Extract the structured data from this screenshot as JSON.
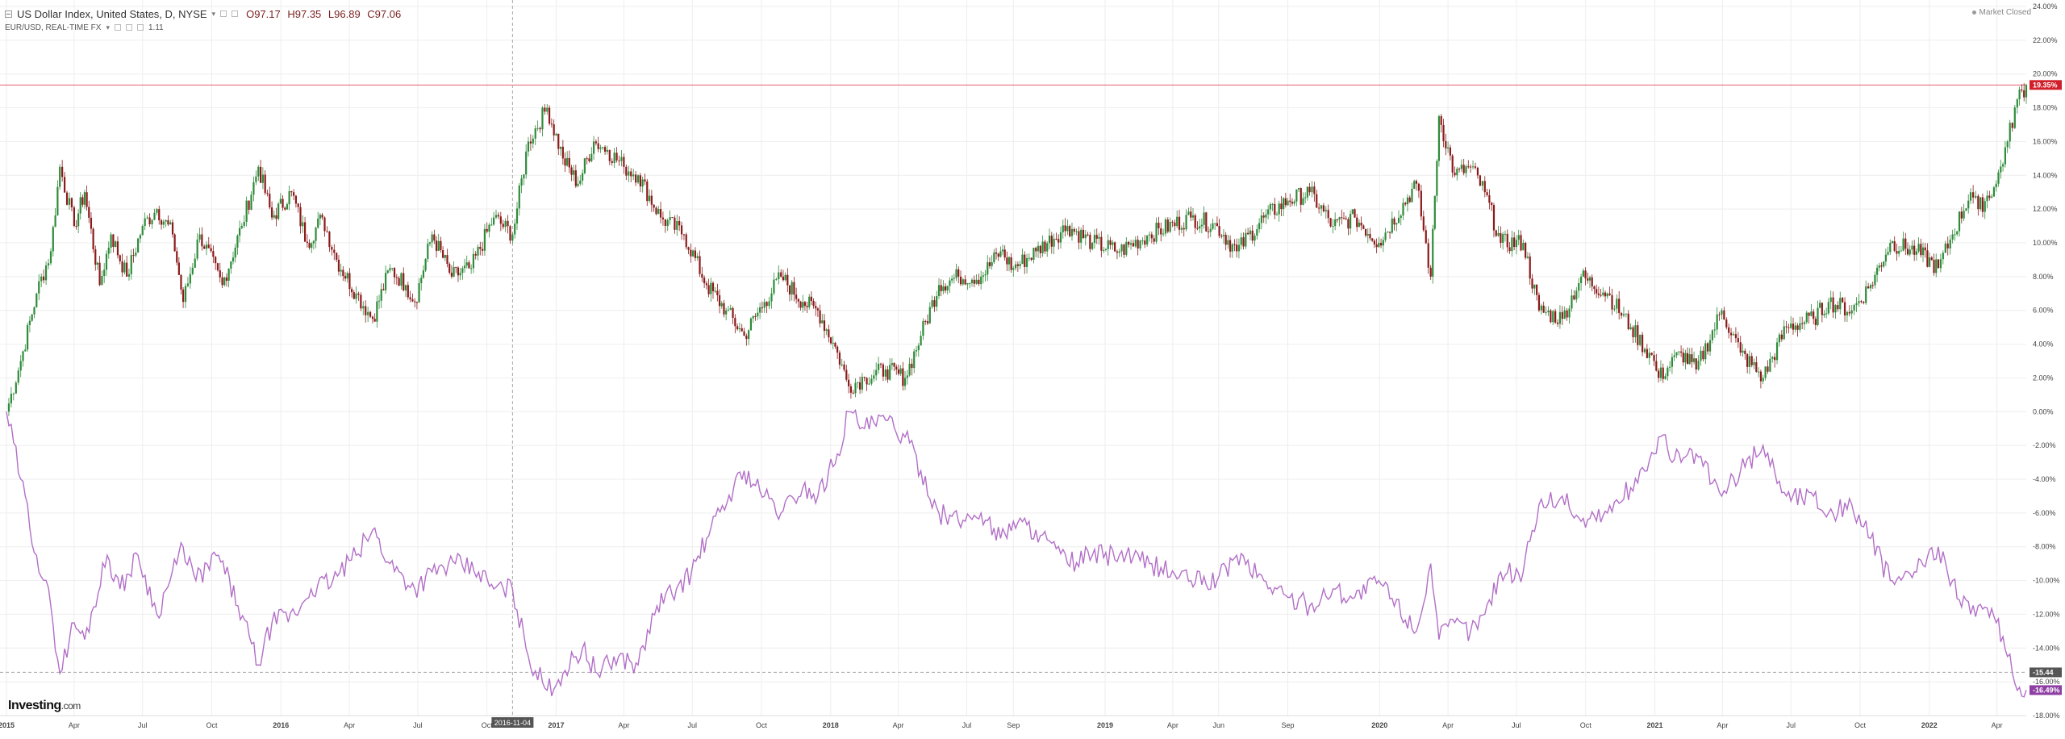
{
  "legend": {
    "main_series": "US Dollar Index, United States, D, NYSE",
    "o": "O97.17",
    "h": "H97.35",
    "l": "L96.89",
    "c": "C97.06",
    "compare_series": "EUR/USD, REAL-TIME FX",
    "compare_value": "1.11"
  },
  "market_status": "Market Closed",
  "crosshair_date": "2016-11-04",
  "brand": {
    "name": "Investing",
    "suffix": ".com"
  },
  "colors": {
    "up": "#2e8b3a",
    "down": "#8b1a1a",
    "compare_line": "#b26fc7",
    "hline": "#e06070",
    "grid": "#eeeeee",
    "axis_text": "#444444",
    "badge_red": "#d11f2a",
    "badge_dark": "#555555",
    "badge_purple": "#8e3fa3"
  },
  "chart_data": {
    "type": "line",
    "title": "",
    "xlabel": "",
    "ylabel": "",
    "ylim": [
      -18,
      24
    ],
    "y_ticks": [
      "24.00%",
      "22.00%",
      "20.00%",
      "18.00%",
      "16.00%",
      "14.00%",
      "12.00%",
      "10.00%",
      "8.00%",
      "6.00%",
      "4.00%",
      "2.00%",
      "0.00%",
      "-2.00%",
      "-4.00%",
      "-6.00%",
      "-8.00%",
      "-10.00%",
      "-12.00%",
      "-14.00%",
      "-16.00%",
      "-18.00%"
    ],
    "x_range": [
      "2015-01-01",
      "2022-05-10"
    ],
    "x_ticks": [
      {
        "date": "2015-01-01",
        "label": "2015"
      },
      {
        "date": "2015-04-01",
        "label": "Apr"
      },
      {
        "date": "2015-07-01",
        "label": "Jul"
      },
      {
        "date": "2015-10-01",
        "label": "Oct"
      },
      {
        "date": "2016-01-01",
        "label": "2016"
      },
      {
        "date": "2016-04-01",
        "label": "Apr"
      },
      {
        "date": "2016-07-01",
        "label": "Jul"
      },
      {
        "date": "2016-10-01",
        "label": "Oct"
      },
      {
        "date": "2017-01-01",
        "label": "2017"
      },
      {
        "date": "2017-04-01",
        "label": "Apr"
      },
      {
        "date": "2017-07-01",
        "label": "Jul"
      },
      {
        "date": "2017-10-01",
        "label": "Oct"
      },
      {
        "date": "2018-01-01",
        "label": "2018"
      },
      {
        "date": "2018-04-01",
        "label": "Apr"
      },
      {
        "date": "2018-07-01",
        "label": "Jul"
      },
      {
        "date": "2018-09-01",
        "label": "Sep"
      },
      {
        "date": "2019-01-01",
        "label": "2019"
      },
      {
        "date": "2019-04-01",
        "label": "Apr"
      },
      {
        "date": "2019-06-01",
        "label": "Jun"
      },
      {
        "date": "2019-09-01",
        "label": "Sep"
      },
      {
        "date": "2020-01-01",
        "label": "2020"
      },
      {
        "date": "2020-04-01",
        "label": "Apr"
      },
      {
        "date": "2020-07-01",
        "label": "Jul"
      },
      {
        "date": "2020-10-01",
        "label": "Oct"
      },
      {
        "date": "2021-01-01",
        "label": "2021"
      },
      {
        "date": "2021-04-01",
        "label": "Apr"
      },
      {
        "date": "2021-07-01",
        "label": "Jul"
      },
      {
        "date": "2021-10-01",
        "label": "Oct"
      },
      {
        "date": "2022-01-01",
        "label": "2022"
      },
      {
        "date": "2022-04-01",
        "label": "Apr"
      }
    ],
    "crosshair": {
      "x": "2016-11-04",
      "y": -15.44
    },
    "horizontal_line": 19.35,
    "badges": [
      {
        "value": 19.35,
        "label": "19.35%",
        "kind": "red"
      },
      {
        "value": -15.44,
        "label": "-15.44",
        "kind": "dark"
      },
      {
        "value": -16.49,
        "label": "-16.49%",
        "kind": "purple"
      }
    ],
    "series": [
      {
        "name": "US Dollar Index",
        "style": "candlestick",
        "points": [
          [
            "2015-01-01",
            0.0
          ],
          [
            "2015-01-20",
            3.0
          ],
          [
            "2015-02-10",
            7.0
          ],
          [
            "2015-03-01",
            9.5
          ],
          [
            "2015-03-13",
            14.5
          ],
          [
            "2015-04-01",
            11.0
          ],
          [
            "2015-04-15",
            13.0
          ],
          [
            "2015-05-05",
            7.5
          ],
          [
            "2015-05-20",
            10.5
          ],
          [
            "2015-06-10",
            8.0
          ],
          [
            "2015-07-01",
            11.0
          ],
          [
            "2015-07-20",
            12.0
          ],
          [
            "2015-08-10",
            10.5
          ],
          [
            "2015-08-24",
            6.5
          ],
          [
            "2015-09-15",
            10.5
          ],
          [
            "2015-10-15",
            7.5
          ],
          [
            "2015-11-10",
            11.0
          ],
          [
            "2015-12-02",
            14.5
          ],
          [
            "2015-12-20",
            11.5
          ],
          [
            "2016-01-15",
            13.0
          ],
          [
            "2016-02-05",
            10.0
          ],
          [
            "2016-02-25",
            11.5
          ],
          [
            "2016-03-15",
            9.0
          ],
          [
            "2016-04-10",
            7.0
          ],
          [
            "2016-05-02",
            5.5
          ],
          [
            "2016-05-25",
            8.5
          ],
          [
            "2016-06-15",
            7.5
          ],
          [
            "2016-06-27",
            6.5
          ],
          [
            "2016-07-20",
            10.5
          ],
          [
            "2016-08-15",
            8.0
          ],
          [
            "2016-09-10",
            8.5
          ],
          [
            "2016-10-10",
            11.5
          ],
          [
            "2016-11-04",
            10.5
          ],
          [
            "2016-11-25",
            16.0
          ],
          [
            "2016-12-20",
            18.0
          ],
          [
            "2017-01-10",
            15.0
          ],
          [
            "2017-01-30",
            13.5
          ],
          [
            "2017-02-20",
            16.0
          ],
          [
            "2017-03-10",
            15.5
          ],
          [
            "2017-04-01",
            14.5
          ],
          [
            "2017-04-20",
            14.0
          ],
          [
            "2017-05-20",
            11.5
          ],
          [
            "2017-06-20",
            10.5
          ],
          [
            "2017-07-20",
            7.5
          ],
          [
            "2017-08-15",
            6.0
          ],
          [
            "2017-09-08",
            4.5
          ],
          [
            "2017-10-05",
            6.5
          ],
          [
            "2017-10-27",
            8.0
          ],
          [
            "2017-11-25",
            6.5
          ],
          [
            "2017-12-15",
            6.0
          ],
          [
            "2018-01-10",
            3.5
          ],
          [
            "2018-01-25",
            1.5
          ],
          [
            "2018-02-15",
            2.0
          ],
          [
            "2018-03-15",
            2.5
          ],
          [
            "2018-04-10",
            2.0
          ],
          [
            "2018-05-01",
            4.5
          ],
          [
            "2018-05-25",
            7.5
          ],
          [
            "2018-06-20",
            8.0
          ],
          [
            "2018-07-20",
            8.0
          ],
          [
            "2018-08-15",
            9.5
          ],
          [
            "2018-09-01",
            8.5
          ],
          [
            "2018-10-01",
            9.5
          ],
          [
            "2018-11-12",
            11.0
          ],
          [
            "2018-12-15",
            10.0
          ],
          [
            "2019-01-20",
            9.5
          ],
          [
            "2019-03-01",
            10.5
          ],
          [
            "2019-04-25",
            11.5
          ],
          [
            "2019-05-30",
            11.0
          ],
          [
            "2019-06-25",
            9.5
          ],
          [
            "2019-07-31",
            11.5
          ],
          [
            "2019-09-01",
            12.5
          ],
          [
            "2019-09-30",
            13.0
          ],
          [
            "2019-10-31",
            11.0
          ],
          [
            "2019-11-29",
            11.5
          ],
          [
            "2019-12-31",
            10.0
          ],
          [
            "2020-02-19",
            13.5
          ],
          [
            "2020-03-09",
            8.0
          ],
          [
            "2020-03-20",
            17.5
          ],
          [
            "2020-04-10",
            14.0
          ],
          [
            "2020-05-01",
            14.5
          ],
          [
            "2020-05-20",
            13.0
          ],
          [
            "2020-06-10",
            10.0
          ],
          [
            "2020-07-10",
            10.0
          ],
          [
            "2020-07-31",
            6.0
          ],
          [
            "2020-08-31",
            5.5
          ],
          [
            "2020-09-25",
            8.0
          ],
          [
            "2020-10-30",
            7.0
          ],
          [
            "2020-11-30",
            5.0
          ],
          [
            "2020-12-31",
            3.0
          ],
          [
            "2021-01-06",
            2.0
          ],
          [
            "2021-02-05",
            3.5
          ],
          [
            "2021-02-25",
            2.5
          ],
          [
            "2021-03-31",
            6.0
          ],
          [
            "2021-04-25",
            3.5
          ],
          [
            "2021-05-25",
            2.0
          ],
          [
            "2021-06-25",
            5.0
          ],
          [
            "2021-07-31",
            5.5
          ],
          [
            "2021-08-20",
            6.5
          ],
          [
            "2021-09-20",
            6.0
          ],
          [
            "2021-10-15",
            7.5
          ],
          [
            "2021-11-10",
            10.0
          ],
          [
            "2021-12-15",
            9.5
          ],
          [
            "2022-01-13",
            8.5
          ],
          [
            "2022-02-01",
            10.5
          ],
          [
            "2022-02-25",
            13.0
          ],
          [
            "2022-03-07",
            12.0
          ],
          [
            "2022-03-31",
            13.5
          ],
          [
            "2022-04-15",
            16.0
          ],
          [
            "2022-04-28",
            18.5
          ],
          [
            "2022-05-10",
            19.35
          ]
        ]
      },
      {
        "name": "EUR/USD",
        "style": "line",
        "points": [
          [
            "2015-01-01",
            0.0
          ],
          [
            "2015-01-20",
            -4.0
          ],
          [
            "2015-02-10",
            -8.5
          ],
          [
            "2015-03-01",
            -11.5
          ],
          [
            "2015-03-13",
            -15.5
          ],
          [
            "2015-04-01",
            -12.5
          ],
          [
            "2015-04-15",
            -13.5
          ],
          [
            "2015-05-15",
            -8.5
          ],
          [
            "2015-06-01",
            -10.5
          ],
          [
            "2015-06-25",
            -8.5
          ],
          [
            "2015-07-20",
            -12.0
          ],
          [
            "2015-08-24",
            -8.0
          ],
          [
            "2015-09-10",
            -10.0
          ],
          [
            "2015-10-10",
            -8.5
          ],
          [
            "2015-11-05",
            -11.5
          ],
          [
            "2015-12-02",
            -15.0
          ],
          [
            "2015-12-20",
            -12.5
          ],
          [
            "2016-01-20",
            -12.0
          ],
          [
            "2016-02-10",
            -10.5
          ],
          [
            "2016-03-10",
            -10.0
          ],
          [
            "2016-04-10",
            -8.5
          ],
          [
            "2016-05-02",
            -7.0
          ],
          [
            "2016-05-25",
            -9.0
          ],
          [
            "2016-06-27",
            -10.5
          ],
          [
            "2016-07-20",
            -9.5
          ],
          [
            "2016-08-20",
            -9.0
          ],
          [
            "2016-09-20",
            -9.5
          ],
          [
            "2016-10-10",
            -10.5
          ],
          [
            "2016-11-04",
            -10.5
          ],
          [
            "2016-11-25",
            -14.5
          ],
          [
            "2016-12-20",
            -16.5
          ],
          [
            "2017-01-10",
            -15.5
          ],
          [
            "2017-02-05",
            -14.0
          ],
          [
            "2017-02-25",
            -15.5
          ],
          [
            "2017-03-25",
            -14.5
          ],
          [
            "2017-04-20",
            -15.0
          ],
          [
            "2017-05-15",
            -11.5
          ],
          [
            "2017-06-10",
            -10.5
          ],
          [
            "2017-06-30",
            -9.5
          ],
          [
            "2017-07-20",
            -7.5
          ],
          [
            "2017-08-25",
            -4.5
          ],
          [
            "2017-09-08",
            -3.5
          ],
          [
            "2017-10-05",
            -5.0
          ],
          [
            "2017-10-27",
            -6.0
          ],
          [
            "2017-11-25",
            -4.5
          ],
          [
            "2017-12-15",
            -5.0
          ],
          [
            "2018-01-10",
            -2.5
          ],
          [
            "2018-01-25",
            0.0
          ],
          [
            "2018-02-15",
            -1.0
          ],
          [
            "2018-03-15",
            -0.5
          ],
          [
            "2018-04-10",
            -1.5
          ],
          [
            "2018-05-01",
            -3.5
          ],
          [
            "2018-05-25",
            -6.0
          ],
          [
            "2018-06-20",
            -6.5
          ],
          [
            "2018-07-20",
            -6.0
          ],
          [
            "2018-08-15",
            -7.5
          ],
          [
            "2018-09-01",
            -6.5
          ],
          [
            "2018-10-01",
            -7.0
          ],
          [
            "2018-11-12",
            -9.0
          ],
          [
            "2018-12-15",
            -8.5
          ],
          [
            "2019-01-20",
            -8.5
          ],
          [
            "2019-03-01",
            -9.0
          ],
          [
            "2019-04-25",
            -10.0
          ],
          [
            "2019-05-30",
            -10.0
          ],
          [
            "2019-06-25",
            -8.5
          ],
          [
            "2019-07-31",
            -10.0
          ],
          [
            "2019-09-01",
            -11.0
          ],
          [
            "2019-09-30",
            -11.5
          ],
          [
            "2019-10-31",
            -10.5
          ],
          [
            "2019-11-29",
            -11.0
          ],
          [
            "2019-12-31",
            -10.0
          ],
          [
            "2020-02-19",
            -13.0
          ],
          [
            "2020-03-09",
            -9.0
          ],
          [
            "2020-03-20",
            -13.5
          ],
          [
            "2020-04-10",
            -12.5
          ],
          [
            "2020-05-01",
            -13.0
          ],
          [
            "2020-05-20",
            -12.0
          ],
          [
            "2020-06-10",
            -9.5
          ],
          [
            "2020-07-10",
            -9.5
          ],
          [
            "2020-07-31",
            -5.5
          ],
          [
            "2020-08-31",
            -5.0
          ],
          [
            "2020-09-25",
            -6.5
          ],
          [
            "2020-10-30",
            -6.0
          ],
          [
            "2020-11-30",
            -4.5
          ],
          [
            "2020-12-31",
            -2.5
          ],
          [
            "2021-01-06",
            -1.5
          ],
          [
            "2021-02-05",
            -3.0
          ],
          [
            "2021-02-25",
            -2.5
          ],
          [
            "2021-03-31",
            -5.0
          ],
          [
            "2021-04-25",
            -3.5
          ],
          [
            "2021-05-25",
            -2.0
          ],
          [
            "2021-06-25",
            -5.0
          ],
          [
            "2021-07-31",
            -5.0
          ],
          [
            "2021-08-20",
            -6.0
          ],
          [
            "2021-09-20",
            -5.5
          ],
          [
            "2021-10-15",
            -7.5
          ],
          [
            "2021-11-10",
            -10.0
          ],
          [
            "2021-12-15",
            -9.5
          ],
          [
            "2022-01-13",
            -8.0
          ],
          [
            "2022-02-01",
            -10.0
          ],
          [
            "2022-02-25",
            -12.0
          ],
          [
            "2022-03-07",
            -11.5
          ],
          [
            "2022-03-31",
            -12.5
          ],
          [
            "2022-04-15",
            -14.5
          ],
          [
            "2022-04-28",
            -16.5
          ],
          [
            "2022-05-10",
            -16.49
          ]
        ]
      }
    ]
  }
}
